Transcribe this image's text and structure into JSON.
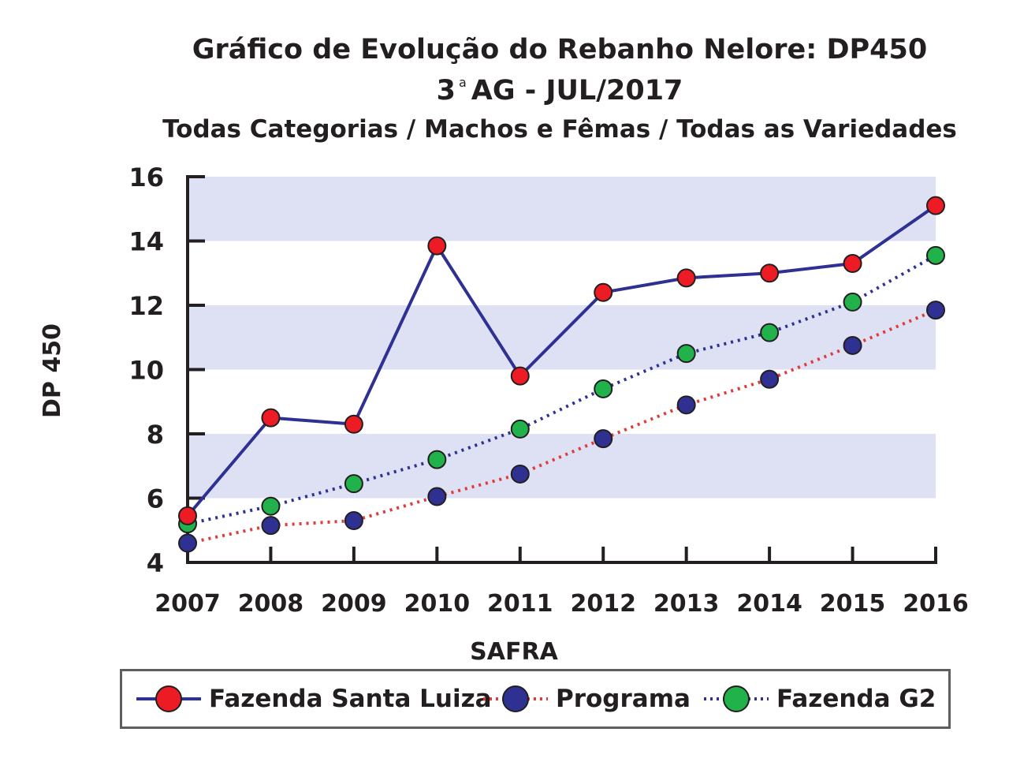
{
  "chart_data": {
    "type": "line",
    "title": "Gráfico de Evolução do Rebanho Nelore: DP450",
    "title_line2": {
      "main": "3",
      "superscript": "a",
      "rest": "AG - JUL/2017"
    },
    "subtitle": "Todas Categorias / Machos e Fêmas / Todas as Variedades",
    "xlabel": "SAFRA",
    "ylabel": "DP 450",
    "ylim": [
      4,
      16
    ],
    "yticks": [
      4,
      6,
      8,
      10,
      12,
      14,
      16
    ],
    "x": [
      "2007",
      "2008",
      "2009",
      "2010",
      "2011",
      "2012",
      "2013",
      "2014",
      "2015",
      "2016"
    ],
    "grid": "alternating horizontal bands",
    "legend_position": "bottom",
    "series": [
      {
        "name": "Fazenda Santa Luiza",
        "values": [
          5.45,
          8.5,
          8.3,
          13.85,
          9.8,
          12.4,
          12.85,
          13.0,
          13.3,
          15.1
        ],
        "line_color": "#2e3192",
        "marker_color": "#ed1c24",
        "line_style": "solid"
      },
      {
        "name": "Programa",
        "values": [
          4.6,
          5.15,
          5.3,
          6.05,
          6.75,
          7.85,
          8.9,
          9.7,
          10.75,
          11.85
        ],
        "line_color": "#e03a3a",
        "marker_color": "#2e3192",
        "line_style": "dotted"
      },
      {
        "name": "Fazenda G2",
        "values": [
          5.2,
          5.75,
          6.45,
          7.2,
          8.15,
          9.4,
          10.5,
          11.15,
          12.1,
          13.55
        ],
        "line_color": "#2e3192",
        "marker_color": "#21b24b",
        "line_style": "dotted"
      }
    ],
    "colors": {
      "band": "#dde1f3",
      "axis": "#231f20",
      "legend_border": "#5e5e5e"
    }
  }
}
